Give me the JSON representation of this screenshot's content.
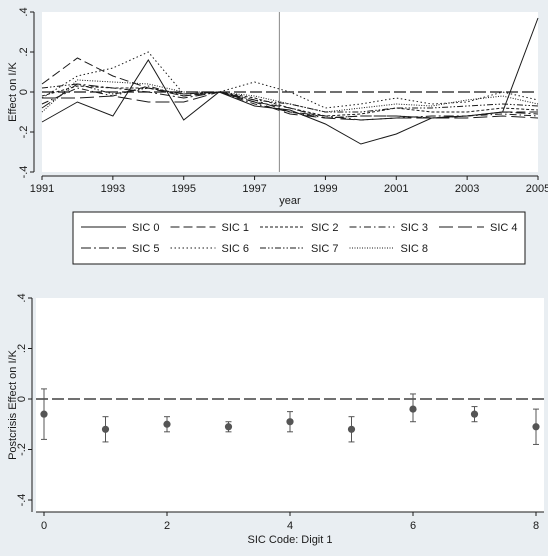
{
  "chart_data": [
    {
      "type": "line",
      "xlabel": "year",
      "ylabel": "Effect on I/K",
      "xlim": [
        1991,
        2005
      ],
      "ylim": [
        -0.4,
        0.4
      ],
      "x_ticks": [
        "1991",
        "1993",
        "1995",
        "1997",
        "1999",
        "2001",
        "2003",
        "2005"
      ],
      "y_ticks": [
        "-.4",
        "-.2",
        "0",
        ".2",
        ".4"
      ],
      "x_tick_values": [
        1991,
        1993,
        1995,
        1997,
        1999,
        2001,
        2003,
        2005
      ],
      "y_tick_values": [
        -0.4,
        -0.2,
        0,
        0.2,
        0.4
      ],
      "reference_hline": 0,
      "reference_vline": 1997.7,
      "grid": false,
      "legend_position": "bottom",
      "x": [
        1991,
        1992,
        1993,
        1994,
        1995,
        1996,
        1997,
        1998,
        1999,
        2000,
        2001,
        2002,
        2003,
        2004,
        2005
      ],
      "series": [
        {
          "name": "SIC 0",
          "dash": "solid",
          "values": [
            -0.15,
            -0.05,
            -0.12,
            0.16,
            -0.14,
            0.0,
            -0.07,
            -0.09,
            -0.16,
            -0.26,
            -0.21,
            -0.13,
            -0.12,
            -0.1,
            0.37
          ]
        },
        {
          "name": "SIC 1",
          "dash": "longdash",
          "values": [
            0.04,
            0.17,
            0.08,
            0.02,
            -0.02,
            0.0,
            -0.05,
            -0.08,
            -0.13,
            -0.12,
            -0.12,
            -0.13,
            -0.12,
            -0.1,
            -0.1
          ]
        },
        {
          "name": "SIC 2",
          "dash": "shortdash",
          "values": [
            -0.02,
            0.03,
            0.02,
            0.02,
            -0.01,
            0.0,
            -0.03,
            -0.08,
            -0.12,
            -0.11,
            -0.08,
            -0.1,
            -0.1,
            -0.08,
            -0.09
          ]
        },
        {
          "name": "SIC 3",
          "dash": "dashdot",
          "values": [
            -0.06,
            0.02,
            -0.02,
            0.03,
            -0.02,
            0.0,
            -0.06,
            -0.1,
            -0.13,
            -0.12,
            -0.12,
            -0.13,
            -0.12,
            -0.11,
            -0.12
          ]
        },
        {
          "name": "SIC 4",
          "dash": "xlongdash",
          "values": [
            -0.03,
            -0.03,
            -0.02,
            -0.05,
            -0.05,
            0.0,
            -0.05,
            -0.11,
            -0.13,
            -0.14,
            -0.13,
            -0.13,
            -0.13,
            -0.12,
            -0.13
          ]
        },
        {
          "name": "SIC 5",
          "dash": "longdashdot",
          "values": [
            -0.08,
            0.04,
            0.02,
            0.0,
            -0.03,
            0.0,
            -0.04,
            -0.1,
            -0.12,
            -0.14,
            -0.13,
            -0.12,
            -0.12,
            -0.1,
            -0.11
          ]
        },
        {
          "name": "SIC 6",
          "dash": "dot",
          "values": [
            -0.03,
            0.08,
            0.12,
            0.2,
            -0.01,
            0.0,
            0.05,
            0.0,
            -0.08,
            -0.06,
            -0.03,
            -0.06,
            -0.05,
            0.0,
            -0.04
          ]
        },
        {
          "name": "SIC 7",
          "dash": "dashdotdot",
          "values": [
            0.02,
            0.04,
            -0.01,
            0.02,
            -0.01,
            0.0,
            -0.04,
            -0.06,
            -0.1,
            -0.1,
            -0.08,
            -0.08,
            -0.07,
            -0.06,
            -0.07
          ]
        },
        {
          "name": "SIC 8",
          "dash": "densedot",
          "values": [
            -0.1,
            0.06,
            0.05,
            0.04,
            0.0,
            0.0,
            -0.02,
            -0.06,
            -0.1,
            -0.08,
            -0.06,
            -0.07,
            -0.04,
            -0.02,
            -0.06
          ]
        }
      ]
    },
    {
      "type": "scatter",
      "xlabel": "SIC Code: Digit 1",
      "ylabel": "Postcrisis Effect on I/K",
      "xlim": [
        0,
        8
      ],
      "ylim": [
        -0.4,
        0.4
      ],
      "x_ticks": [
        "0",
        "2",
        "4",
        "6",
        "8"
      ],
      "y_ticks": [
        "-.4",
        "-.2",
        "0",
        ".2",
        ".4"
      ],
      "x_tick_values": [
        0,
        2,
        4,
        6,
        8
      ],
      "y_tick_values": [
        -0.4,
        -0.2,
        0,
        0.2,
        0.4
      ],
      "reference_hline": 0,
      "grid": false,
      "points": [
        {
          "x": 0,
          "y": -0.06,
          "low": -0.16,
          "high": 0.04
        },
        {
          "x": 1,
          "y": -0.12,
          "low": -0.17,
          "high": -0.07
        },
        {
          "x": 2,
          "y": -0.1,
          "low": -0.13,
          "high": -0.07
        },
        {
          "x": 3,
          "y": -0.11,
          "low": -0.13,
          "high": -0.09
        },
        {
          "x": 4,
          "y": -0.09,
          "low": -0.13,
          "high": -0.05
        },
        {
          "x": 5,
          "y": -0.12,
          "low": -0.17,
          "high": -0.07
        },
        {
          "x": 6,
          "y": -0.04,
          "low": -0.09,
          "high": 0.02
        },
        {
          "x": 7,
          "y": -0.06,
          "low": -0.09,
          "high": -0.03
        },
        {
          "x": 8,
          "y": -0.11,
          "low": -0.18,
          "high": -0.04
        }
      ]
    }
  ],
  "colors": {
    "background": "#e9eef2",
    "plot_area": "#ffffff",
    "ink": "#1a1a1a",
    "marker": "#555555",
    "vline": "#888888"
  }
}
